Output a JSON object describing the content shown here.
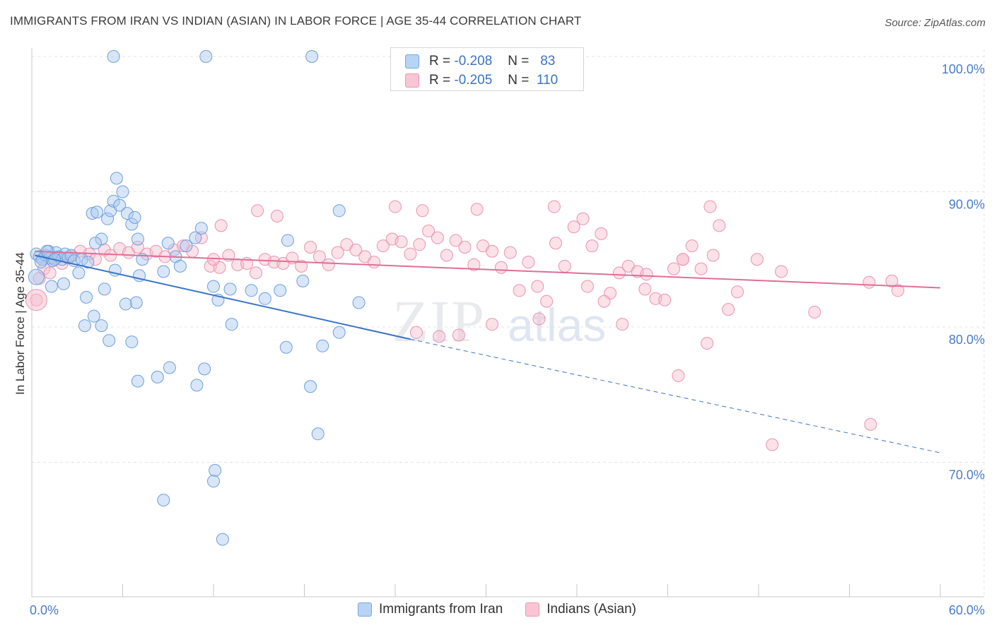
{
  "title": "IMMIGRANTS FROM IRAN VS INDIAN (ASIAN) IN LABOR FORCE | AGE 35-44 CORRELATION CHART",
  "source": "Source: ZipAtlas.com",
  "watermark": {
    "zip": "ZIP",
    "atlas": "atlas"
  },
  "stats": [
    {
      "r_label": "R =",
      "r": "-0.208",
      "n_label": "N =",
      "n": "83",
      "swatch": "blue"
    },
    {
      "r_label": "R =",
      "r": "-0.205",
      "n_label": "N =",
      "n": "110",
      "swatch": "pink"
    }
  ],
  "legend": [
    "Immigrants from Iran",
    "Indians (Asian)"
  ],
  "colors": {
    "blue_fill": "#a9c8f0",
    "blue_stroke": "#6f9fdc",
    "blue_line": "#3a73c6",
    "pink_fill": "#f6bccd",
    "pink_stroke": "#e894b0",
    "pink_line": "#e06e97",
    "axis_text": "#4a7cc8"
  },
  "chart_data": {
    "type": "scatter",
    "ylabel": "In Labor Force | Age 35-44",
    "xlim": [
      0,
      60
    ],
    "ylim": [
      62,
      101
    ],
    "x_tick_labels": [
      {
        "value": 0,
        "label": "0.0%"
      },
      {
        "value": 60,
        "label": "60.0%"
      }
    ],
    "y_tick_labels": [
      {
        "value": 100,
        "label": "100.0%"
      },
      {
        "value": 90,
        "label": "90.0%"
      },
      {
        "value": 80,
        "label": "80.0%"
      },
      {
        "value": 70,
        "label": "70.0%"
      }
    ],
    "grid": true,
    "series": [
      {
        "name": "Immigrants from Iran",
        "color": "blue",
        "trend": {
          "x0": 0.2,
          "y0": 85.3,
          "x1": 25,
          "y1": 79.1,
          "dash_to_x": 60,
          "dash_to_y": 70.7
        },
        "points": [
          [
            0.3,
            85.4
          ],
          [
            0.5,
            85.2
          ],
          [
            0.7,
            85.0
          ],
          [
            0.9,
            85.3
          ],
          [
            1.1,
            85.6
          ],
          [
            1.2,
            85.1
          ],
          [
            1.4,
            84.9
          ],
          [
            1.6,
            85.5
          ],
          [
            1.8,
            85.2
          ],
          [
            2.0,
            85.0
          ],
          [
            2.2,
            85.4
          ],
          [
            2.4,
            85.1
          ],
          [
            2.6,
            85.3
          ],
          [
            2.8,
            84.9
          ],
          [
            1.0,
            85.6
          ],
          [
            1.5,
            85.0
          ],
          [
            0.6,
            84.8
          ],
          [
            1.3,
            83.0
          ],
          [
            2.1,
            83.2
          ],
          [
            3.1,
            84.0
          ],
          [
            3.3,
            85.0
          ],
          [
            3.7,
            84.8
          ],
          [
            4.0,
            88.4
          ],
          [
            4.3,
            88.5
          ],
          [
            4.6,
            86.5
          ],
          [
            4.2,
            86.2
          ],
          [
            5.0,
            88.0
          ],
          [
            5.2,
            88.6
          ],
          [
            5.6,
            91.0
          ],
          [
            5.4,
            89.3
          ],
          [
            5.8,
            89.0
          ],
          [
            6.0,
            90.0
          ],
          [
            6.3,
            88.4
          ],
          [
            6.6,
            87.6
          ],
          [
            6.8,
            88.1
          ],
          [
            7.0,
            86.5
          ],
          [
            7.3,
            85.0
          ],
          [
            7.1,
            83.8
          ],
          [
            5.5,
            84.2
          ],
          [
            4.8,
            82.8
          ],
          [
            4.1,
            80.8
          ],
          [
            3.6,
            82.2
          ],
          [
            3.5,
            80.1
          ],
          [
            4.6,
            80.1
          ],
          [
            5.1,
            79.0
          ],
          [
            6.9,
            81.8
          ],
          [
            6.2,
            81.7
          ],
          [
            6.6,
            78.9
          ],
          [
            7.0,
            76.0
          ],
          [
            8.3,
            76.3
          ],
          [
            9.0,
            86.2
          ],
          [
            9.5,
            85.2
          ],
          [
            8.7,
            84.1
          ],
          [
            9.8,
            84.5
          ],
          [
            10.2,
            86.0
          ],
          [
            10.8,
            86.6
          ],
          [
            11.2,
            87.3
          ],
          [
            9.1,
            77.0
          ],
          [
            11.4,
            76.9
          ],
          [
            10.9,
            75.7
          ],
          [
            12.0,
            83.0
          ],
          [
            12.3,
            82.0
          ],
          [
            13.2,
            80.2
          ],
          [
            14.5,
            82.7
          ],
          [
            13.1,
            82.8
          ],
          [
            15.4,
            82.1
          ],
          [
            16.4,
            82.7
          ],
          [
            16.8,
            78.5
          ],
          [
            17.9,
            83.4
          ],
          [
            18.4,
            75.6
          ],
          [
            19.2,
            78.6
          ],
          [
            20.3,
            79.6
          ],
          [
            18.9,
            72.1
          ],
          [
            8.7,
            67.2
          ],
          [
            12.1,
            69.4
          ],
          [
            12.0,
            68.6
          ],
          [
            12.6,
            64.3
          ],
          [
            5.4,
            100.0
          ],
          [
            11.5,
            100.0
          ],
          [
            18.5,
            100.0
          ],
          [
            16.9,
            86.4
          ],
          [
            20.3,
            88.6
          ],
          [
            21.6,
            81.8
          ]
        ]
      },
      {
        "name": "Indians (Asian)",
        "color": "pink",
        "trend": {
          "x0": 0.2,
          "y0": 85.6,
          "x1": 60,
          "y1": 82.9
        },
        "points": [
          [
            0.3,
            82.0
          ],
          [
            0.5,
            83.6
          ],
          [
            0.8,
            84.3
          ],
          [
            1.2,
            84.0
          ],
          [
            1.6,
            85.1
          ],
          [
            2.0,
            84.7
          ],
          [
            2.6,
            85.2
          ],
          [
            3.2,
            85.6
          ],
          [
            3.8,
            85.4
          ],
          [
            4.2,
            85.0
          ],
          [
            4.8,
            85.7
          ],
          [
            5.2,
            85.3
          ],
          [
            5.8,
            85.8
          ],
          [
            6.4,
            85.5
          ],
          [
            7.0,
            85.9
          ],
          [
            7.6,
            85.4
          ],
          [
            8.2,
            85.6
          ],
          [
            8.8,
            85.2
          ],
          [
            9.4,
            85.7
          ],
          [
            10.0,
            86.0
          ],
          [
            10.6,
            85.6
          ],
          [
            11.2,
            86.6
          ],
          [
            11.8,
            84.5
          ],
          [
            12.4,
            84.4
          ],
          [
            13.0,
            85.3
          ],
          [
            13.6,
            84.6
          ],
          [
            14.2,
            84.7
          ],
          [
            14.8,
            84.0
          ],
          [
            15.4,
            85.0
          ],
          [
            16.0,
            84.8
          ],
          [
            16.6,
            84.7
          ],
          [
            17.2,
            85.1
          ],
          [
            17.8,
            84.5
          ],
          [
            18.4,
            85.9
          ],
          [
            19.0,
            85.2
          ],
          [
            19.6,
            84.6
          ],
          [
            20.2,
            85.5
          ],
          [
            20.8,
            86.1
          ],
          [
            21.4,
            85.7
          ],
          [
            22.0,
            85.2
          ],
          [
            22.6,
            84.8
          ],
          [
            23.2,
            86.0
          ],
          [
            23.8,
            86.5
          ],
          [
            24.4,
            86.3
          ],
          [
            25.0,
            85.4
          ],
          [
            25.6,
            86.1
          ],
          [
            26.2,
            87.1
          ],
          [
            26.8,
            86.6
          ],
          [
            27.4,
            85.3
          ],
          [
            28.0,
            86.4
          ],
          [
            28.6,
            85.9
          ],
          [
            29.2,
            84.6
          ],
          [
            29.8,
            86.0
          ],
          [
            30.4,
            85.6
          ],
          [
            31.0,
            84.4
          ],
          [
            31.6,
            85.5
          ],
          [
            32.2,
            82.7
          ],
          [
            32.8,
            84.8
          ],
          [
            33.4,
            83.0
          ],
          [
            34.0,
            81.9
          ],
          [
            34.6,
            86.2
          ],
          [
            35.2,
            84.5
          ],
          [
            35.8,
            87.4
          ],
          [
            36.4,
            88.0
          ],
          [
            37.0,
            86.0
          ],
          [
            37.6,
            86.9
          ],
          [
            38.2,
            82.5
          ],
          [
            38.8,
            84.0
          ],
          [
            39.4,
            84.5
          ],
          [
            40.0,
            84.1
          ],
          [
            40.6,
            83.9
          ],
          [
            41.2,
            82.1
          ],
          [
            41.8,
            82.0
          ],
          [
            42.4,
            84.3
          ],
          [
            43.0,
            85.0
          ],
          [
            43.6,
            86.0
          ],
          [
            44.2,
            84.3
          ],
          [
            44.8,
            88.9
          ],
          [
            45.4,
            87.5
          ],
          [
            46.0,
            81.3
          ],
          [
            46.6,
            82.6
          ],
          [
            12.0,
            85.0
          ],
          [
            12.5,
            87.5
          ],
          [
            14.9,
            88.6
          ],
          [
            16.2,
            88.2
          ],
          [
            24.0,
            88.9
          ],
          [
            25.8,
            88.6
          ],
          [
            29.4,
            88.7
          ],
          [
            34.5,
            88.9
          ],
          [
            43.0,
            85.0
          ],
          [
            25.4,
            79.6
          ],
          [
            26.9,
            79.3
          ],
          [
            28.2,
            79.4
          ],
          [
            30.4,
            80.2
          ],
          [
            33.5,
            80.6
          ],
          [
            36.7,
            83.0
          ],
          [
            37.8,
            81.9
          ],
          [
            39.0,
            80.2
          ],
          [
            40.5,
            82.8
          ],
          [
            42.7,
            76.4
          ],
          [
            44.6,
            78.8
          ],
          [
            45.0,
            85.3
          ],
          [
            47.9,
            85.0
          ],
          [
            49.5,
            84.1
          ],
          [
            51.7,
            81.1
          ],
          [
            55.3,
            83.3
          ],
          [
            56.8,
            83.4
          ],
          [
            57.2,
            82.7
          ],
          [
            55.4,
            72.8
          ],
          [
            48.9,
            71.3
          ]
        ]
      }
    ]
  }
}
